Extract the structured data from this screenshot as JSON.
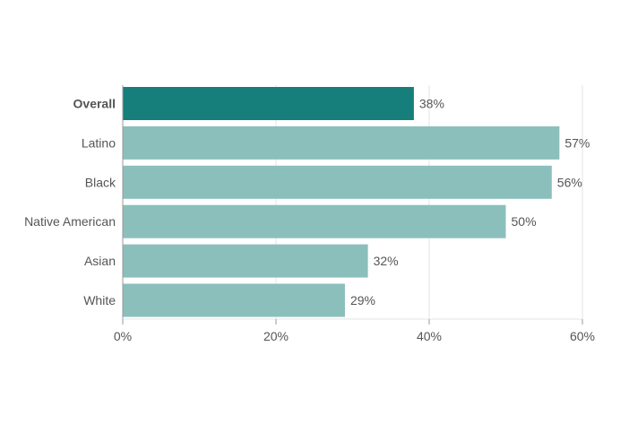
{
  "chart_data": {
    "type": "bar",
    "orientation": "horizontal",
    "categories": [
      "Overall",
      "Latino",
      "Black",
      "Native American",
      "Asian",
      "White"
    ],
    "values": [
      38,
      57,
      56,
      50,
      32,
      29
    ],
    "value_labels": [
      "38%",
      "57%",
      "56%",
      "50%",
      "32%",
      "29%"
    ],
    "highlighted_category": "Overall",
    "xlim": [
      0,
      60
    ],
    "x_ticks": [
      0,
      20,
      40,
      60
    ],
    "x_tick_labels": [
      "0%",
      "20%",
      "40%",
      "60%"
    ],
    "grid": true,
    "colors": {
      "highlight": "#167f7b",
      "bar": "#8bbfbc",
      "grid": "#e6e6e6",
      "axis": "#999999",
      "text": "#555555",
      "highlight_text": "#555555"
    }
  }
}
